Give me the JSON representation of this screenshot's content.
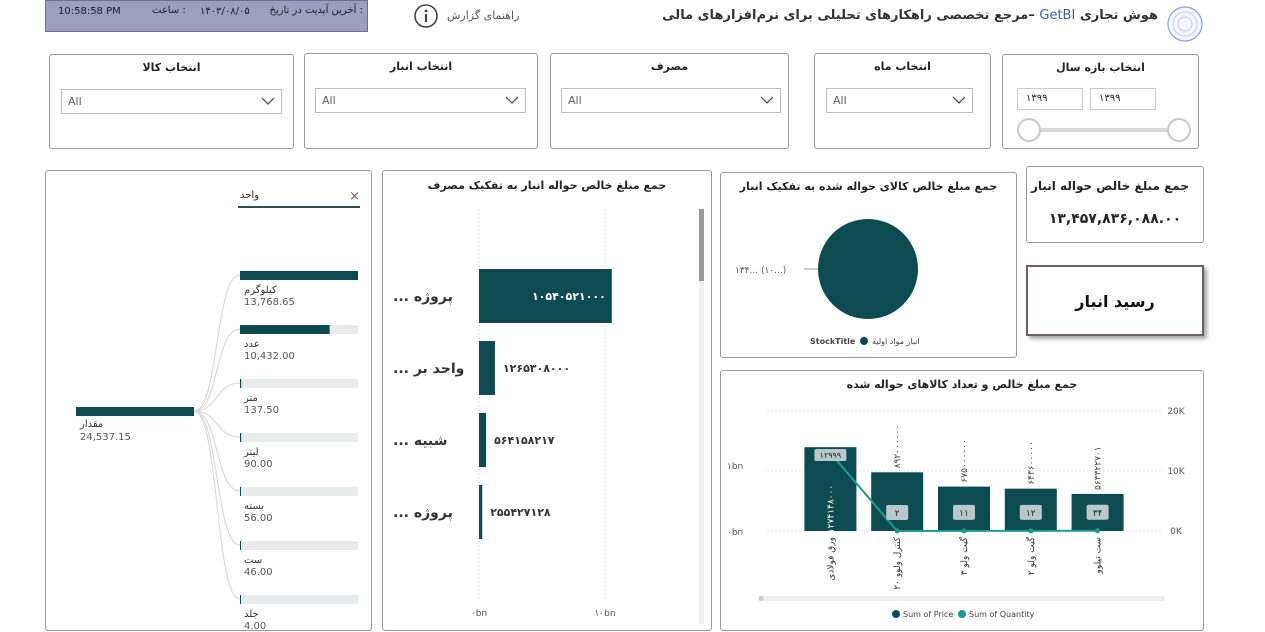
{
  "header": {
    "brand_title_part1": "هوش تجاری",
    "brand_name": "GetBI",
    "brand_title_part2": "–مرجع تخصصی راهکارهای تحلیلی برای نرم‌افزارهای مالی",
    "help_label": "راهنمای گزارش",
    "update_label": "آخرین آپدیت در تاریخ :",
    "update_date": "۱۴۰۳/۰۸/۰۵",
    "time_label": "ساعت :",
    "update_time": "10:58:58 PM"
  },
  "slicers": {
    "year": {
      "title": "انتخاب بازه سال",
      "from": "۱۳۹۹",
      "to": "۱۳۹۹"
    },
    "month": {
      "title": "انتخاب ماه",
      "value": "All"
    },
    "consumption": {
      "title": "مصرف",
      "value": "All"
    },
    "warehouse": {
      "title": "انتخاب انبار",
      "value": "All"
    },
    "product": {
      "title": "انتخاب کالا",
      "value": "All"
    }
  },
  "kpi": {
    "title": "جمع مبلغ خالص حواله انبار",
    "value": "۱۳,۴۵۷,۸۳۶,۰۸۸.۰۰"
  },
  "receipt_button": {
    "label": "رسید انبار"
  },
  "pie": {
    "title": "جمع مبلغ خالص کالای حواله شده به تفکیک انبار",
    "slice_label": "۱۳۴... (۱۰...)",
    "legend_title": "StockTitle",
    "legend_item": "انبار مواد اولیه",
    "color": "#0c4b52"
  },
  "decomp": {
    "search_placeholder": "واحد",
    "close_glyph": "×",
    "root_label": "مقدار",
    "root_value": "24,537.15",
    "items": [
      {
        "label": "کیلوگرم",
        "value": "13,768.65"
      },
      {
        "label": "عدد",
        "value": "10,432.00"
      },
      {
        "label": "متر",
        "value": "137.50"
      },
      {
        "label": "لیتر",
        "value": "90.00"
      },
      {
        "label": "بسته",
        "value": "56.00"
      },
      {
        "label": "ست",
        "value": "46.00"
      },
      {
        "label": "جلد",
        "value": "4.00"
      }
    ],
    "fill_fractions": [
      1.0,
      0.76,
      0.01,
      0.01,
      0.004,
      0.003,
      0.0003
    ]
  },
  "chart_data": [
    {
      "type": "bar",
      "title": "جمع مبلغ خالص حواله انبار به تفکیک مصرف",
      "categories": [
        "... پروژه",
        "... واحد بر",
        "... شبیه",
        "... پروژه"
      ],
      "values": [
        10540521000,
        1265308000,
        564158217,
        255427128
      ],
      "value_labels": [
        "۱۰۵۴۰۵۲۱۰۰۰",
        "۱۲۶۵۳۰۸۰۰۰",
        "۵۶۴۱۵۸۲۱۷",
        "۲۵۵۴۲۷۱۲۸"
      ],
      "xlim": [
        0,
        10000000000
      ],
      "xticks": [
        "۰bn",
        "۱۰bn"
      ],
      "color": "#0c4b52"
    },
    {
      "type": "bar",
      "title": "جمع مبلغ خالص و تعداد کالاهای حواله شده",
      "categories": [
        "ورق فولادی",
        "کنترل ولوو ۲۰",
        "گیت ولو ۳",
        "گیت ولو ۲",
        "ست تیلوو"
      ],
      "series": [
        {
          "name": "Sum of Price",
          "values": [
            1274148000,
            892000000,
            675000000,
            643600000,
            563322701
          ],
          "color": "#0c4b52"
        },
        {
          "name": "Sum of Quantity",
          "values": [
            12999,
            2,
            11,
            12,
            34
          ],
          "color": "#1a9c95"
        }
      ],
      "price_labels": [
        "۱۲۷۴۱۴۸۰۰۰",
        "۸۹۲۰۰۰۰۰۰",
        "۶۷۵۰۰۰۰۰۰",
        "۶۴۳۶۰۰۰۰۰",
        "۵۶۳۳۲۲۷۰۱"
      ],
      "quantity_labels": [
        "۱۲۹۹۹",
        "۲",
        "۱۱",
        "۱۲",
        "۳۴"
      ],
      "y_left_ticks": [
        "۰bn",
        "۱bn"
      ],
      "y_right_ticks": [
        "0K",
        "10K",
        "20K"
      ],
      "ylim_left": [
        0,
        1900000000
      ],
      "ylim_right": [
        0,
        20000
      ]
    }
  ]
}
